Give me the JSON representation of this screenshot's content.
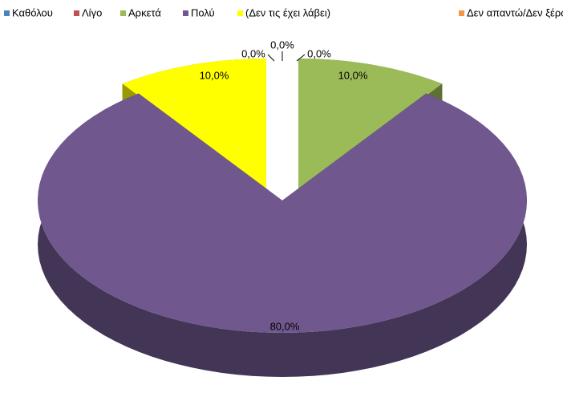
{
  "chart_data": {
    "type": "pie3d",
    "categories": [
      "Καθόλου",
      "Λίγο",
      "Αρκετά",
      "Πολύ",
      "(Δεν τις έχει λάβει)",
      "Δεν απαντώ/Δεν ξέρω"
    ],
    "values": [
      0,
      0,
      10,
      80,
      10,
      0
    ],
    "value_labels": [
      "0,0%",
      "0,0%",
      "10,0%",
      "80,0%",
      "10,0%",
      "0,0%"
    ],
    "colors": [
      "#4f81bd",
      "#c0504d",
      "#9bbb59",
      "#70588f",
      "#ffff00",
      "#f79646"
    ],
    "legend": "top"
  }
}
